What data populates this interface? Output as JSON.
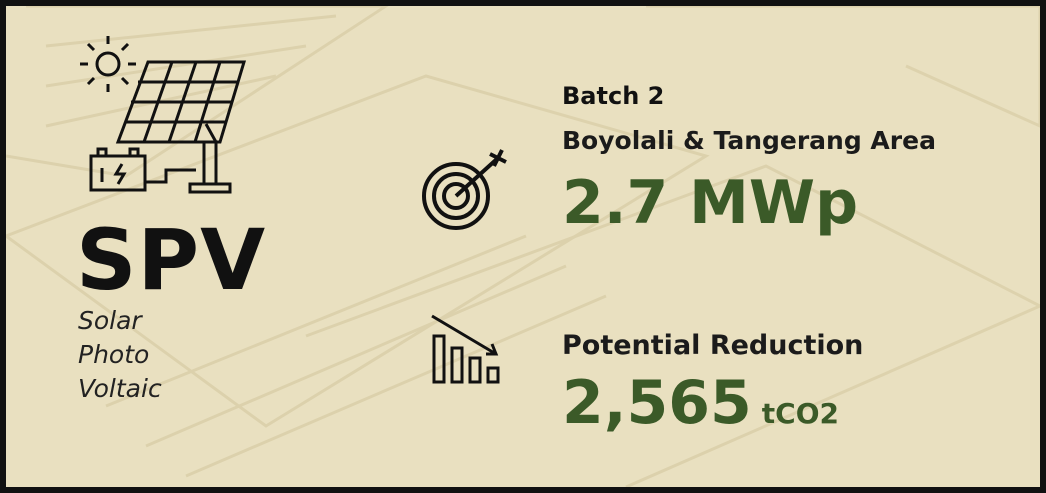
{
  "spv": {
    "title": "SPV",
    "lines": [
      "Solar",
      "Photo",
      "Voltaic"
    ]
  },
  "capacity": {
    "batch": "Batch 2",
    "area": "Boyolali & Tangerang Area",
    "value": "2.7 MWp"
  },
  "reduction": {
    "label": "Potential Reduction",
    "value": "2,565",
    "unit": "tCO2"
  }
}
